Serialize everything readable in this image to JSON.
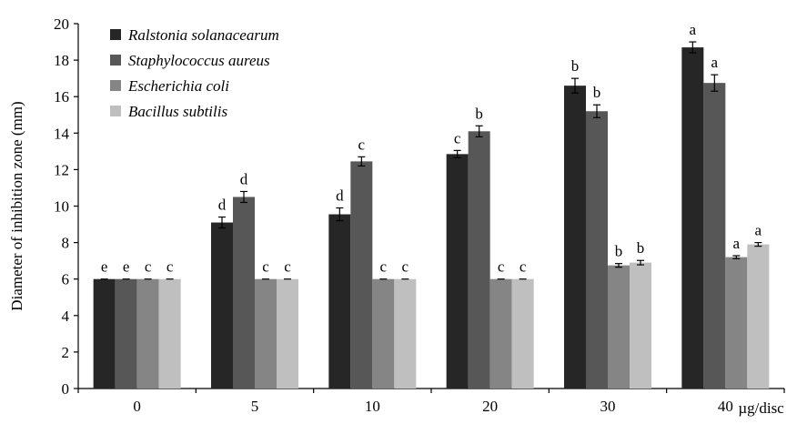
{
  "chart_data": {
    "type": "bar",
    "title": "",
    "xlabel": "",
    "x_unit": "µg/disc",
    "ylabel": "Diameter of inhibition zone (mm)",
    "ylim": [
      0,
      20
    ],
    "yticks": [
      0,
      2,
      4,
      6,
      8,
      10,
      12,
      14,
      16,
      18,
      20
    ],
    "categories": [
      "0",
      "5",
      "10",
      "20",
      "30",
      "40"
    ],
    "grid": false,
    "legend_position": "top-left",
    "series": [
      {
        "name": "Ralstonia solanacearum",
        "color": "#262626",
        "values": [
          6.0,
          9.1,
          9.55,
          12.85,
          16.6,
          18.7
        ],
        "errors": [
          0.0,
          0.3,
          0.35,
          0.2,
          0.4,
          0.3
        ],
        "letters": [
          "e",
          "d",
          "d",
          "c",
          "b",
          "a"
        ]
      },
      {
        "name": "Staphylococcus aureus",
        "color": "#575757",
        "values": [
          6.0,
          10.5,
          12.45,
          14.1,
          15.2,
          16.75
        ],
        "errors": [
          0.0,
          0.3,
          0.25,
          0.3,
          0.35,
          0.45
        ],
        "letters": [
          "e",
          "d",
          "c",
          "b",
          "b",
          "a"
        ]
      },
      {
        "name": "Escherichia coli",
        "color": "#858585",
        "values": [
          6.0,
          6.0,
          6.0,
          6.0,
          6.75,
          7.2
        ],
        "errors": [
          0.0,
          0.0,
          0.0,
          0.0,
          0.1,
          0.08
        ],
        "letters": [
          "c",
          "c",
          "c",
          "c",
          "b",
          "a"
        ]
      },
      {
        "name": "Bacillus subtilis",
        "color": "#bfbfbf",
        "values": [
          6.0,
          6.0,
          6.0,
          6.0,
          6.9,
          7.9
        ],
        "errors": [
          0.0,
          0.0,
          0.0,
          0.0,
          0.12,
          0.1
        ],
        "letters": [
          "c",
          "c",
          "c",
          "c",
          "b",
          "a"
        ]
      }
    ]
  }
}
